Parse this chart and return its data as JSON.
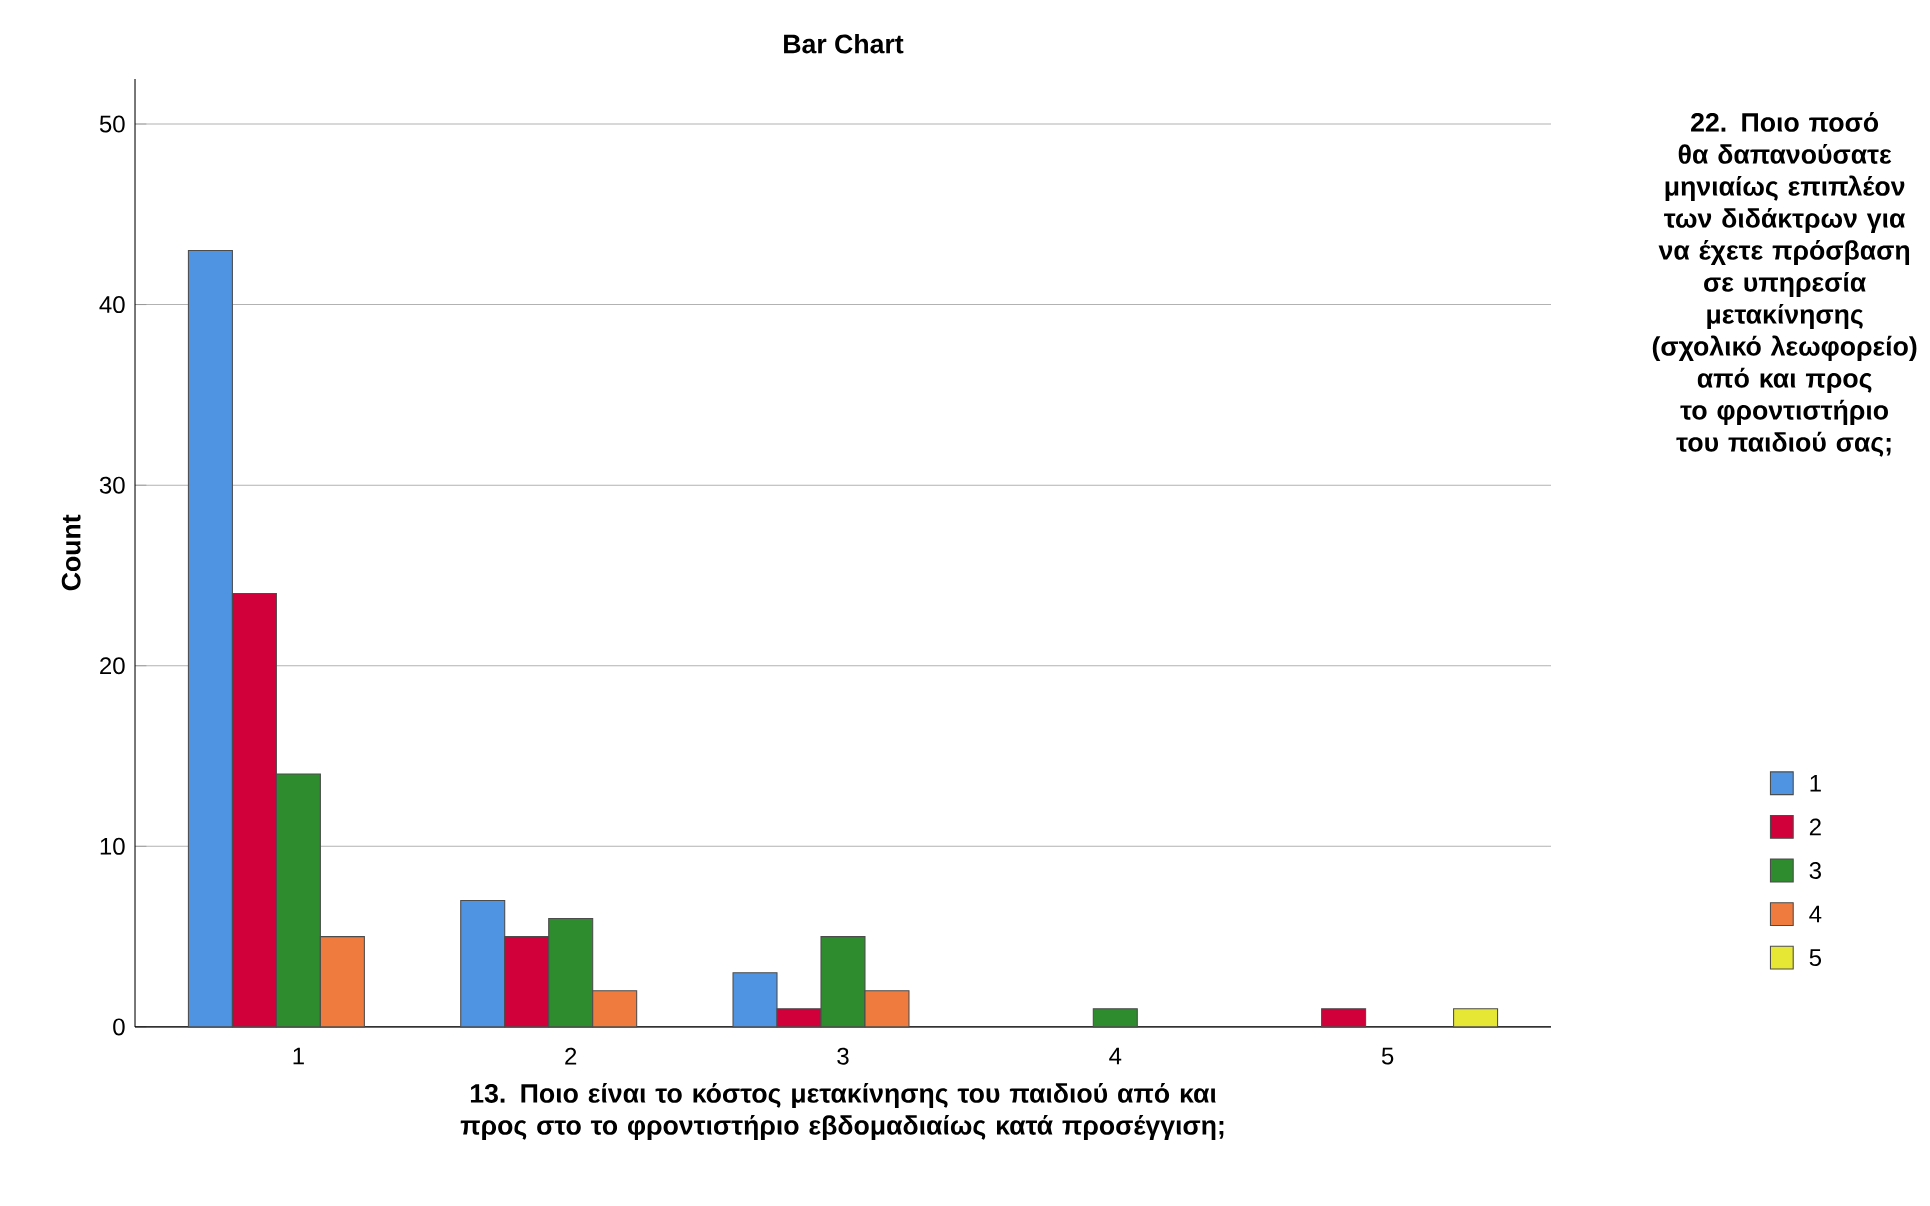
{
  "chart_data": {
    "type": "bar",
    "title": "Bar Chart",
    "xlabel": "13. Ποιο είναι το κόστος μετακίνησης του παιδιού από και προς στο το φροντιστήριο εβδομαδιαίως κατά προσέγγιση;",
    "ylabel": "Count",
    "legend_title": "22. Ποιο ποσό θα δαπανούσατε μηνιαίως επιπλέον των διδάκτρων για να έχετε πρόσβαση σε υπηρεσία μετακίνησης (σχολικό λεωφορείο) από και προς το φροντιστήριο του παιδιού σας;",
    "categories": [
      "1",
      "2",
      "3",
      "4",
      "5"
    ],
    "series": [
      {
        "name": "1",
        "color": "#4f94e3",
        "values": [
          43,
          7,
          3,
          null,
          null
        ]
      },
      {
        "name": "2",
        "color": "#d1003a",
        "values": [
          24,
          5,
          1,
          null,
          1
        ]
      },
      {
        "name": "3",
        "color": "#2e8b2e",
        "values": [
          14,
          6,
          5,
          1,
          null
        ]
      },
      {
        "name": "4",
        "color": "#f07b3f",
        "values": [
          5,
          2,
          2,
          null,
          null
        ]
      },
      {
        "name": "5",
        "color": "#e6e635",
        "values": [
          null,
          null,
          null,
          null,
          1
        ]
      }
    ],
    "ylim": [
      0,
      52.5
    ],
    "yticks": [
      0,
      10,
      20,
      30,
      40,
      50
    ],
    "grid": "y",
    "legend": "right"
  }
}
